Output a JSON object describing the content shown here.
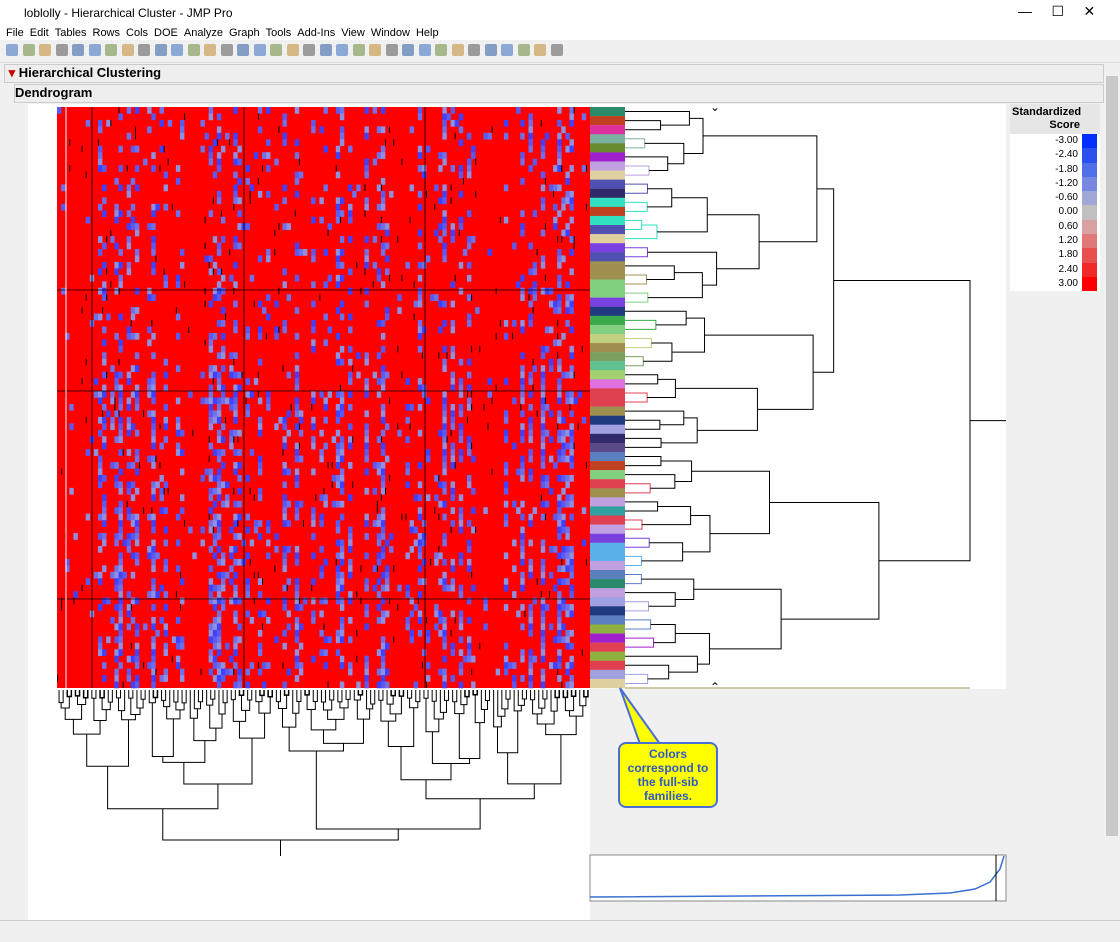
{
  "window": {
    "title": "loblolly - Hierarchical Cluster - JMP Pro"
  },
  "menu": [
    "File",
    "Edit",
    "Tables",
    "Rows",
    "Cols",
    "DOE",
    "Analyze",
    "Graph",
    "Tools",
    "Add-Ins",
    "View",
    "Window",
    "Help"
  ],
  "report": {
    "title": "Hierarchical Clustering",
    "section": "Dendrogram"
  },
  "legend": {
    "title": "Standardized Score",
    "labels": [
      "-3.00",
      "-2.40",
      "-1.80",
      "-1.20",
      "-0.60",
      "0.00",
      "0.60",
      "1.20",
      "1.80",
      "2.40",
      "3.00"
    ]
  },
  "callout": "Colors correspond to the full-sib families."
}
